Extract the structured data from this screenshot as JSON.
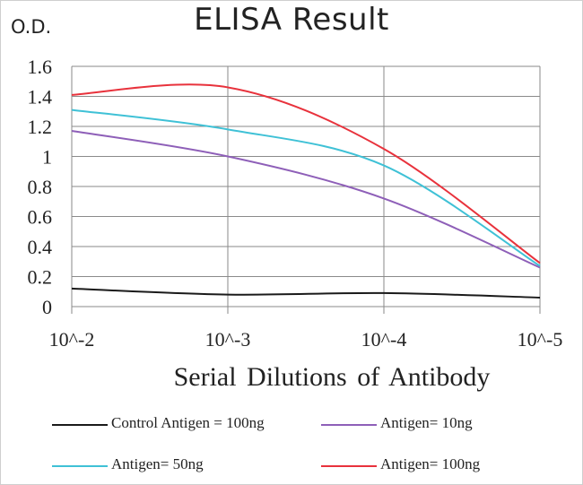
{
  "chart_data": {
    "type": "line",
    "title": "ELISA Result",
    "ylabel": "O.D.",
    "xlabel": "Serial Dilutions  of Antibody",
    "x_categories": [
      "10^-2",
      "10^-3",
      "10^-4",
      "10^-5"
    ],
    "ylim": [
      0,
      1.6
    ],
    "y_ticks": [
      "0",
      "0.2",
      "0.4",
      "0.6",
      "0.8",
      "1",
      "1.2",
      "1.4",
      "1.6"
    ],
    "grid": true,
    "legend_position": "bottom",
    "series": [
      {
        "name": "Control Antigen = 100ng",
        "color": "#1a1a1a",
        "values": [
          0.12,
          0.08,
          0.09,
          0.06
        ]
      },
      {
        "name": "Antigen= 10ng",
        "color": "#8e5fb8",
        "values": [
          1.17,
          1.0,
          0.72,
          0.26
        ]
      },
      {
        "name": "Antigen= 50ng",
        "color": "#3fc1d6",
        "values": [
          1.31,
          1.18,
          0.94,
          0.27
        ]
      },
      {
        "name": "Antigen= 100ng",
        "color": "#e8323c",
        "values": [
          1.41,
          1.46,
          1.05,
          0.29
        ]
      }
    ]
  }
}
